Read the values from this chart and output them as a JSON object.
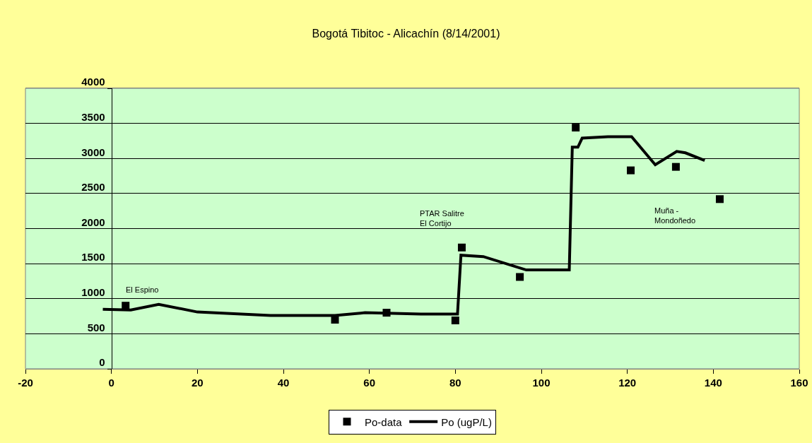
{
  "chart_data": {
    "type": "scatter",
    "title": "Bogotá Tibitoc - Alicachín (8/14/2001)",
    "xlim": [
      -20,
      160
    ],
    "xticks": [
      -20,
      0,
      20,
      40,
      60,
      80,
      100,
      120,
      140,
      160
    ],
    "ylim": [
      0,
      4000
    ],
    "yticks": [
      0,
      500,
      1000,
      1500,
      2000,
      2500,
      3000,
      3500,
      4000
    ],
    "grid": "y",
    "legend": "bottom",
    "series": [
      {
        "name": "Po-data",
        "marker": "square",
        "color": "#000000",
        "x": [
          3.3,
          52,
          64,
          80,
          81.5,
          95,
          108,
          120.8,
          131.3,
          141.5
        ],
        "values": [
          900,
          700,
          800,
          690,
          1730,
          1310,
          3440,
          2830,
          2880,
          2420
        ]
      },
      {
        "name": "Po (ugP/L)",
        "type": "line",
        "marker": "none",
        "line_style": "solid",
        "color": "#000000",
        "x": [
          -2,
          4.5,
          11,
          20,
          37,
          52,
          59,
          72,
          80.5,
          81.3,
          86.5,
          96.5,
          106.5,
          107.2,
          108.5,
          109.5,
          115.5,
          121,
          126.5,
          131.5,
          133.5,
          138
        ],
        "values": [
          850,
          840,
          920,
          810,
          760,
          760,
          800,
          780,
          780,
          1620,
          1600,
          1410,
          1410,
          3160,
          3160,
          3290,
          3310,
          3310,
          2910,
          3100,
          3080,
          2970
        ]
      }
    ],
    "annotations": [
      "El Espino",
      "PTAR Salitre\nEl Cortijo",
      "Muña -\nMondoñedo"
    ]
  }
}
